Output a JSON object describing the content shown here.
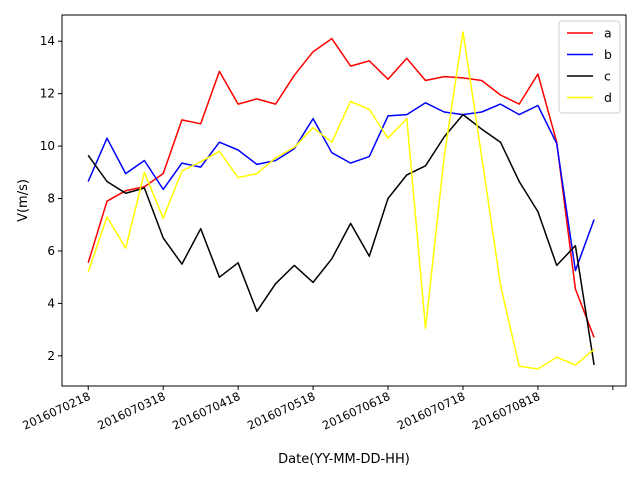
{
  "chart_data": {
    "type": "line",
    "title": "",
    "xlabel": "Date(YY-MM-DD-HH)",
    "ylabel": "V(m/s)",
    "ylim": [
      0.85,
      15.0
    ],
    "xlim": [
      -1.4,
      28.7
    ],
    "grid": false,
    "legend_position": "top-right",
    "x_ticks": [
      {
        "pos": 0,
        "label": "2016070218"
      },
      {
        "pos": 4,
        "label": "2016070318"
      },
      {
        "pos": 8,
        "label": "2016070418"
      },
      {
        "pos": 12,
        "label": "2016070518"
      },
      {
        "pos": 16,
        "label": "2016070618"
      },
      {
        "pos": 20,
        "label": "2016070718"
      },
      {
        "pos": 24,
        "label": "2016070818"
      },
      {
        "pos": 28,
        "label": ""
      }
    ],
    "y_ticks": [
      2,
      4,
      6,
      8,
      10,
      12,
      14
    ],
    "x": [
      0,
      1,
      2,
      3,
      4,
      5,
      6,
      7,
      8,
      9,
      10,
      11,
      12,
      13,
      14,
      15,
      16,
      17,
      18,
      19,
      20,
      21,
      22,
      23,
      24,
      25,
      26,
      27
    ],
    "series": [
      {
        "name": "a",
        "color": "#ff0000",
        "values": [
          5.55,
          7.9,
          8.3,
          8.45,
          8.95,
          11.0,
          10.85,
          12.85,
          11.6,
          11.8,
          11.6,
          12.7,
          13.6,
          14.1,
          13.05,
          13.25,
          12.55,
          13.35,
          12.5,
          12.65,
          12.6,
          12.5,
          11.95,
          11.6,
          12.75,
          10.15,
          4.55,
          2.7
        ]
      },
      {
        "name": "b",
        "color": "#0000ff",
        "values": [
          8.65,
          10.3,
          8.95,
          9.45,
          8.35,
          9.35,
          9.2,
          10.15,
          9.85,
          9.3,
          9.45,
          9.9,
          11.05,
          9.75,
          9.35,
          9.6,
          11.15,
          11.2,
          11.65,
          11.3,
          11.2,
          11.3,
          11.6,
          11.2,
          11.55,
          10.1,
          5.25,
          7.2
        ]
      },
      {
        "name": "c",
        "color": "#000000",
        "values": [
          9.65,
          8.65,
          8.2,
          8.4,
          6.5,
          5.5,
          6.85,
          5.0,
          5.55,
          3.7,
          4.75,
          5.45,
          4.8,
          5.7,
          7.05,
          5.8,
          8.0,
          8.9,
          9.25,
          10.35,
          11.2,
          10.65,
          10.15,
          8.65,
          7.5,
          5.45,
          6.2,
          1.65
        ]
      },
      {
        "name": "d",
        "color": "#ffff00",
        "values": [
          5.2,
          7.3,
          6.1,
          9.0,
          7.25,
          9.05,
          9.4,
          9.8,
          8.8,
          8.95,
          9.55,
          9.95,
          10.7,
          10.15,
          11.7,
          11.4,
          10.3,
          11.05,
          3.05,
          9.6,
          14.35,
          9.6,
          4.7,
          1.6,
          1.5,
          1.95,
          1.65,
          2.25
        ]
      }
    ]
  }
}
